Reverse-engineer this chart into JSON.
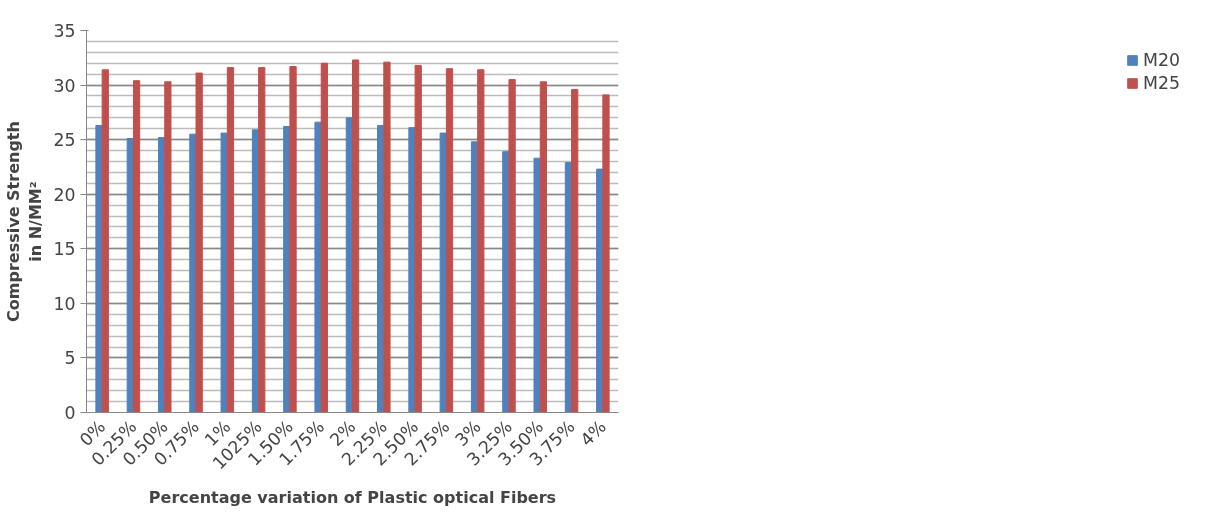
{
  "chart_data": {
    "type": "bar",
    "xlabel": "Percentage variation of Plastic optical Fibers",
    "ylabel": "Compressive Strength\nin N/MM²",
    "categories": [
      "0%",
      "0.25%",
      "0.50%",
      "0.75%",
      "1%",
      "1025%",
      "1.50%",
      "1.75%",
      "2%",
      "2.25%",
      "2.50%",
      "2.75%",
      "3%",
      "3.25%",
      "3.50%",
      "3.75%",
      "4%"
    ],
    "series": [
      {
        "name": "M20",
        "color": "#4f81bd",
        "values": [
          26.3,
          25.1,
          25.2,
          25.5,
          25.6,
          25.9,
          26.2,
          26.6,
          27.0,
          26.3,
          26.1,
          25.6,
          24.8,
          23.9,
          23.3,
          22.9,
          22.3
        ]
      },
      {
        "name": "M25",
        "color": "#c0504d",
        "values": [
          31.4,
          30.4,
          30.3,
          31.1,
          31.6,
          31.6,
          31.7,
          32.0,
          32.3,
          32.1,
          31.8,
          31.5,
          31.4,
          30.5,
          30.3,
          29.6,
          29.1
        ]
      }
    ],
    "ylim": [
      0,
      35
    ],
    "yticks": [
      0,
      5,
      10,
      15,
      20,
      25,
      30,
      35
    ],
    "grid": "y",
    "legend": "right"
  }
}
